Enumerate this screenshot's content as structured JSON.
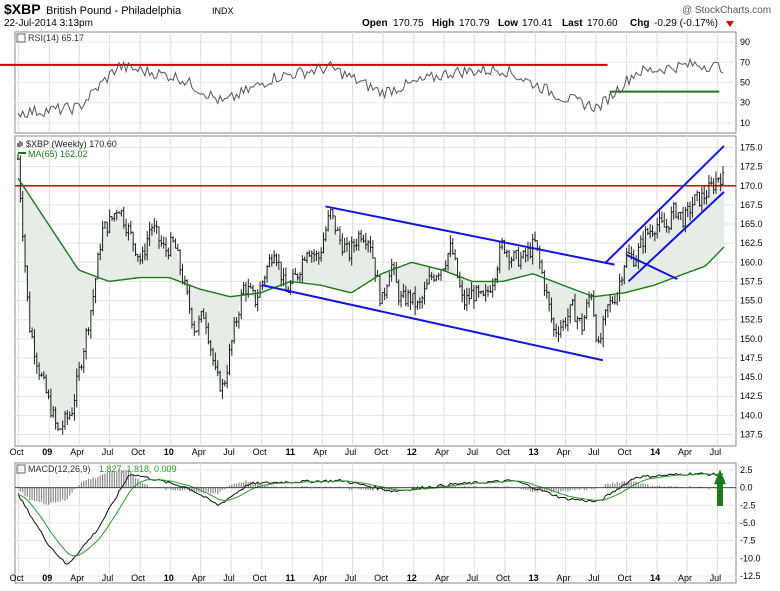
{
  "header": {
    "symbol": "$XBP",
    "name": "British Pound - Philadelphia",
    "exchange": "INDX",
    "datetime": "22-Jul-2014 3:13pm",
    "watermark": "@ StockCharts.com",
    "open_label": "Open",
    "open": "170.75",
    "high_label": "High",
    "high": "170.79",
    "low_label": "Low",
    "low": "170.41",
    "last_label": "Last",
    "last": "170.60",
    "chg_label": "Chg",
    "chg": "-0.29 (-0.17%)"
  },
  "colors": {
    "price": "#222222",
    "ma": "#1a7a1a",
    "redline": "#cc0000",
    "channel": "#1515dd",
    "macd": "#111111",
    "signal": "#2e9a2e",
    "hist": "#8a8a8a",
    "arrow": "#1a7a1a",
    "panel_bg": "#ffffff",
    "shade": "#e6ece6"
  },
  "rsi": {
    "label": "RSI(14) 65.17",
    "ticks": [
      "90",
      "70",
      "50",
      "30",
      "10"
    ],
    "overbought": 70,
    "oversold": 30
  },
  "price": {
    "label": "$XBP (Weekly) 170.60",
    "ma_label": "MA(65) 162.02",
    "ticks": [
      "175.0",
      "172.5",
      "170.0",
      "167.5",
      "165.0",
      "162.5",
      "160.0",
      "157.5",
      "155.0",
      "152.5",
      "150.0",
      "147.5",
      "145.0",
      "142.5",
      "140.0",
      "137.5"
    ]
  },
  "macd": {
    "label_a": "MACD(12,26,9)",
    "label_b": "1.827, 1.818, 0.009",
    "ticks": [
      "2.5",
      "0.0",
      "-2.5",
      "-5.0",
      "-7.5",
      "-10.0",
      "-12.5"
    ]
  },
  "xaxis": {
    "labels": [
      "Oct",
      "09",
      "Apr",
      "Jul",
      "Oct",
      "10",
      "Apr",
      "Jul",
      "Oct",
      "11",
      "Apr",
      "Jul",
      "Oct",
      "12",
      "Apr",
      "Jul",
      "Oct",
      "13",
      "Apr",
      "Jul",
      "Oct",
      "14",
      "Apr",
      "Jul"
    ],
    "bold": [
      "09",
      "10",
      "11",
      "12",
      "13",
      "14"
    ]
  },
  "chart_data": {
    "type": "line",
    "title": "$XBP British Pound - Philadelphia INDX (Weekly)",
    "x_start": "Oct 2008",
    "x_end": "Jul 2014",
    "series": [
      {
        "name": "$XBP (Weekly)",
        "points": [
          [
            "2008-09-29",
            173.5
          ],
          [
            "2008-11-01",
            152.0
          ],
          [
            "2008-12-01",
            146.0
          ],
          [
            "2009-01-12",
            140.0
          ],
          [
            "2009-01-26",
            137.8
          ],
          [
            "2009-03-09",
            140.5
          ],
          [
            "2009-04-06",
            147.0
          ],
          [
            "2009-05-11",
            155.0
          ],
          [
            "2009-06-08",
            164.0
          ],
          [
            "2009-07-06",
            165.5
          ],
          [
            "2009-07-27",
            167.5
          ],
          [
            "2009-09-07",
            163.0
          ],
          [
            "2009-10-05",
            160.0
          ],
          [
            "2009-11-02",
            165.0
          ],
          [
            "2009-12-14",
            161.5
          ],
          [
            "2010-01-11",
            162.5
          ],
          [
            "2010-02-08",
            157.5
          ],
          [
            "2010-03-15",
            151.0
          ],
          [
            "2010-04-12",
            153.5
          ],
          [
            "2010-05-17",
            145.0
          ],
          [
            "2010-06-07",
            143.5
          ],
          [
            "2010-07-12",
            151.5
          ],
          [
            "2010-08-09",
            157.0
          ],
          [
            "2010-09-13",
            155.0
          ],
          [
            "2010-10-11",
            158.5
          ],
          [
            "2010-11-08",
            162.0
          ],
          [
            "2010-12-13",
            156.0
          ],
          [
            "2011-01-17",
            158.5
          ],
          [
            "2011-02-14",
            162.0
          ],
          [
            "2011-03-21",
            160.5
          ],
          [
            "2011-04-25",
            166.5
          ],
          [
            "2011-05-23",
            163.0
          ],
          [
            "2011-06-20",
            161.0
          ],
          [
            "2011-07-25",
            164.0
          ],
          [
            "2011-08-22",
            163.0
          ],
          [
            "2011-09-26",
            154.5
          ],
          [
            "2011-10-24",
            160.0
          ],
          [
            "2011-11-21",
            155.0
          ],
          [
            "2011-12-19",
            155.5
          ],
          [
            "2012-01-16",
            154.0
          ],
          [
            "2012-02-20",
            158.0
          ],
          [
            "2012-03-26",
            159.5
          ],
          [
            "2012-04-23",
            162.0
          ],
          [
            "2012-05-28",
            154.5
          ],
          [
            "2012-06-25",
            156.0
          ],
          [
            "2012-07-30",
            155.0
          ],
          [
            "2012-08-27",
            158.0
          ],
          [
            "2012-09-24",
            162.5
          ],
          [
            "2012-10-22",
            160.5
          ],
          [
            "2012-11-26",
            160.5
          ],
          [
            "2012-12-31",
            162.5
          ],
          [
            "2013-01-28",
            157.0
          ],
          [
            "2013-02-25",
            151.0
          ],
          [
            "2013-03-25",
            152.0
          ],
          [
            "2013-04-22",
            154.0
          ],
          [
            "2013-05-20",
            151.5
          ],
          [
            "2013-06-17",
            156.5
          ],
          [
            "2013-07-08",
            148.5
          ],
          [
            "2013-08-05",
            154.0
          ],
          [
            "2013-09-02",
            156.0
          ],
          [
            "2013-09-30",
            161.0
          ],
          [
            "2013-10-28",
            160.5
          ],
          [
            "2013-11-25",
            163.5
          ],
          [
            "2013-12-30",
            165.0
          ],
          [
            "2014-01-27",
            164.5
          ],
          [
            "2014-02-24",
            167.0
          ],
          [
            "2014-03-24",
            165.5
          ],
          [
            "2014-04-21",
            168.0
          ],
          [
            "2014-05-19",
            168.5
          ],
          [
            "2014-06-16",
            170.0
          ],
          [
            "2014-07-07",
            171.5
          ],
          [
            "2014-07-21",
            170.6
          ]
        ]
      },
      {
        "name": "MA(65)",
        "points": [
          [
            "2008-09-29",
            171.0
          ],
          [
            "2008-12-29",
            165.0
          ],
          [
            "2009-03-30",
            159.0
          ],
          [
            "2009-06-29",
            157.5
          ],
          [
            "2009-09-28",
            158.0
          ],
          [
            "2009-12-28",
            158.0
          ],
          [
            "2010-03-29",
            156.5
          ],
          [
            "2010-06-28",
            155.5
          ],
          [
            "2010-09-27",
            156.0
          ],
          [
            "2010-12-27",
            157.5
          ],
          [
            "2011-03-28",
            157.0
          ],
          [
            "2011-06-27",
            156.0
          ],
          [
            "2011-09-26",
            158.5
          ],
          [
            "2011-12-26",
            160.0
          ],
          [
            "2012-03-26",
            159.0
          ],
          [
            "2012-06-25",
            157.5
          ],
          [
            "2012-09-24",
            157.5
          ],
          [
            "2012-12-24",
            158.5
          ],
          [
            "2013-03-25",
            157.0
          ],
          [
            "2013-06-24",
            155.5
          ],
          [
            "2013-09-23",
            156.0
          ],
          [
            "2013-12-23",
            157.0
          ],
          [
            "2014-03-24",
            158.5
          ],
          [
            "2014-05-26",
            159.5
          ],
          [
            "2014-07-21",
            162.0
          ]
        ]
      },
      {
        "name": "RSI(14)",
        "points": [
          [
            "2008-09-29",
            20
          ],
          [
            "2009-03-30",
            25
          ],
          [
            "2009-07-27",
            66
          ],
          [
            "2010-01-25",
            55
          ],
          [
            "2010-06-07",
            30
          ],
          [
            "2010-11-08",
            55
          ],
          [
            "2011-04-25",
            65
          ],
          [
            "2011-09-26",
            40
          ],
          [
            "2012-04-23",
            60
          ],
          [
            "2012-09-24",
            63
          ],
          [
            "2013-03-25",
            35
          ],
          [
            "2013-07-08",
            25
          ],
          [
            "2013-10-28",
            60
          ],
          [
            "2014-04-21",
            68
          ],
          [
            "2014-07-21",
            65.17
          ]
        ]
      },
      {
        "name": "MACD(12,26,9)",
        "points": [
          [
            "2008-09-29",
            -1.0
          ],
          [
            "2008-12-29",
            -8.0
          ],
          [
            "2009-02-23",
            -11.0
          ],
          [
            "2009-05-25",
            -6.0
          ],
          [
            "2009-08-31",
            2.0
          ],
          [
            "2009-11-30",
            1.0
          ],
          [
            "2010-02-22",
            0.0
          ],
          [
            "2010-05-24",
            -2.5
          ],
          [
            "2010-08-23",
            0.5
          ],
          [
            "2010-11-29",
            0.8
          ],
          [
            "2011-05-30",
            1.0
          ],
          [
            "2011-10-31",
            -0.5
          ],
          [
            "2012-04-30",
            0.5
          ],
          [
            "2012-10-29",
            1.0
          ],
          [
            "2013-03-25",
            -1.5
          ],
          [
            "2013-07-08",
            -2.0
          ],
          [
            "2013-10-28",
            1.5
          ],
          [
            "2014-04-21",
            2.0
          ],
          [
            "2014-07-21",
            1.827
          ]
        ]
      }
    ],
    "ylim_price": [
      136,
      176.5
    ],
    "ylim_rsi": [
      0,
      100
    ],
    "ylim_macd": [
      -13.5,
      3.5
    ],
    "horizontal_lines": [
      {
        "value": 170.0,
        "color": "#cc0000"
      }
    ],
    "grid": true
  }
}
